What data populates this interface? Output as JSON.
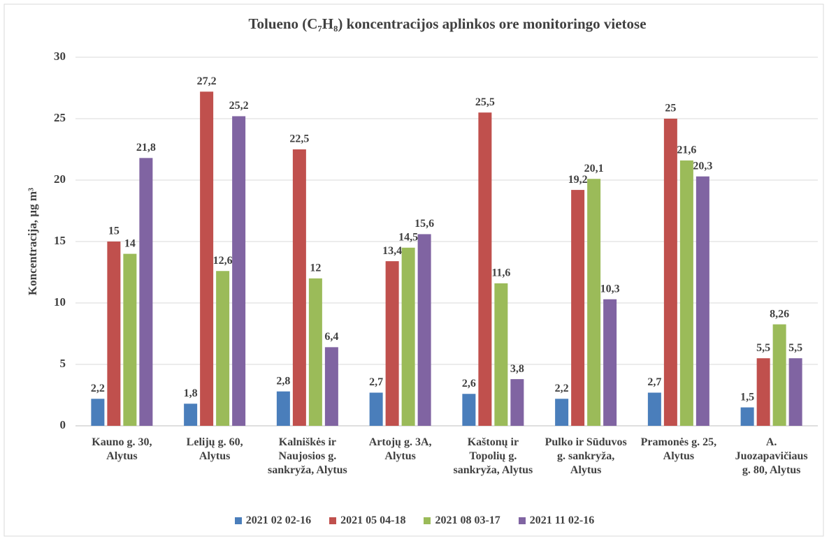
{
  "chart_data": {
    "type": "bar",
    "title": "Tolueno (C₇H₈) koncentracijos aplinkos ore monitoringo vietose",
    "y_label": "Koncentracija, µg m³",
    "categories": [
      "Kauno g. 30, Alytus",
      "Lelijų g. 60, Alytus",
      "Kalniškės ir Naujosios g. sankryža, Alytus",
      "Artojų g. 3A, Alytus",
      "Kaštonų ir Topolių g. sankryža, Alytus",
      "Pulko ir Sūduvos g. sankryža, Alytus",
      "Pramonės g. 25, Alytus",
      "A. Juozapavičiaus g. 80, Alytus"
    ],
    "series": [
      {
        "name": "2021 02 02-16",
        "color": "#4a7ebb",
        "values": [
          2.2,
          1.8,
          2.8,
          2.7,
          2.6,
          2.2,
          2.7,
          1.5
        ],
        "value_labels": [
          "2,2",
          "1,8",
          "2,8",
          "2,7",
          "2,6",
          "2,2",
          "2,7",
          "1,5"
        ]
      },
      {
        "name": "2021 05 04-18",
        "color": "#c0504d",
        "values": [
          15,
          27.2,
          22.5,
          13.4,
          25.5,
          19.2,
          25,
          5.5
        ],
        "value_labels": [
          "15",
          "27,2",
          "22,5",
          "13,4",
          "25,5",
          "19,2",
          "25",
          "5,5"
        ]
      },
      {
        "name": "2021 08 03-17",
        "color": "#9bbb59",
        "values": [
          14,
          12.6,
          12,
          14.5,
          11.6,
          20.1,
          21.6,
          8.26
        ],
        "value_labels": [
          "14",
          "12,6",
          "12",
          "14,5",
          "11,6",
          "20,1",
          "21,6",
          "8,26"
        ]
      },
      {
        "name": "2021 11 02-16",
        "color": "#8064a2",
        "values": [
          21.8,
          25.2,
          6.4,
          15.6,
          3.8,
          10.3,
          20.3,
          5.5
        ],
        "value_labels": [
          "21,8",
          "25,2",
          "6,4",
          "15,6",
          "3,8",
          "10,3",
          "20,3",
          "5,5"
        ]
      }
    ],
    "ylim": [
      0,
      30
    ],
    "yticks": [
      0,
      5,
      10,
      15,
      20,
      25,
      30
    ],
    "grid": true,
    "legend": "bottom"
  }
}
